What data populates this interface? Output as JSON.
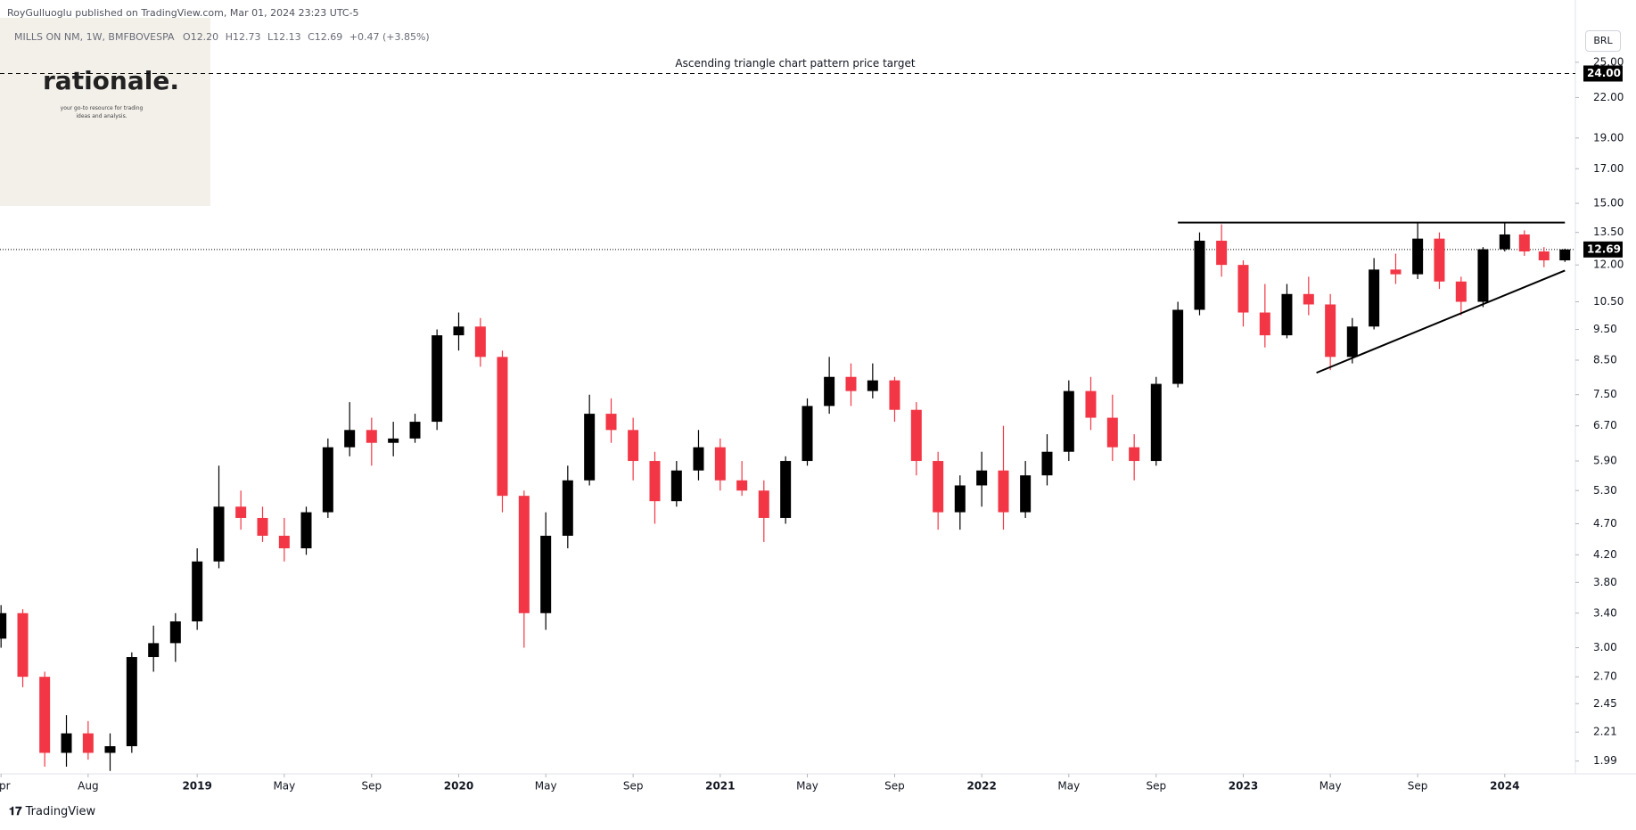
{
  "byline": "RoyGulluoglu published on TradingView.com, Mar 01, 2024 23:23 UTC-5",
  "symbol": "MILLS ON NM, 1W, BMFBOVESPA",
  "ohlc": [
    "O12.20",
    "H12.73",
    "L12.13",
    "C12.69",
    "+0.47 (+3.85%)"
  ],
  "logo": {
    "title": "rationale.",
    "tagline": [
      "your go-to resource for trading",
      "ideas and analysis."
    ]
  },
  "currency": "BRL",
  "footer": "TradingView",
  "chart_data": {
    "type": "candlestick",
    "log_scale": true,
    "up_color": "#000000",
    "down_color": "#f23645",
    "xlim": [
      2018.246,
      2024.27
    ],
    "ylim": [
      1.9,
      28.8
    ],
    "xticks": [
      {
        "value": 2018.25,
        "label": "Apr"
      },
      {
        "value": 2018.583,
        "label": "Aug"
      },
      {
        "value": 2019,
        "label": "2019"
      },
      {
        "value": 2019.333,
        "label": "May"
      },
      {
        "value": 2019.667,
        "label": "Sep"
      },
      {
        "value": 2020,
        "label": "2020"
      },
      {
        "value": 2020.333,
        "label": "May"
      },
      {
        "value": 2020.667,
        "label": "Sep"
      },
      {
        "value": 2021,
        "label": "2021"
      },
      {
        "value": 2021.333,
        "label": "May"
      },
      {
        "value": 2021.667,
        "label": "Sep"
      },
      {
        "value": 2022,
        "label": "2022"
      },
      {
        "value": 2022.333,
        "label": "May"
      },
      {
        "value": 2022.667,
        "label": "Sep"
      },
      {
        "value": 2023,
        "label": "2023"
      },
      {
        "value": 2023.333,
        "label": "May"
      },
      {
        "value": 2023.667,
        "label": "Sep"
      },
      {
        "value": 2024,
        "label": "2024"
      }
    ],
    "yticks": [
      {
        "value": 25,
        "label": "25.00"
      },
      {
        "value": 22,
        "label": "22.00"
      },
      {
        "value": 19,
        "label": "19.00"
      },
      {
        "value": 17,
        "label": "17.00"
      },
      {
        "value": 15,
        "label": "15.00"
      },
      {
        "value": 13.5,
        "label": "13.50"
      },
      {
        "value": 12,
        "label": "12.00"
      },
      {
        "value": 10.5,
        "label": "10.50"
      },
      {
        "value": 9.5,
        "label": "9.50"
      },
      {
        "value": 8.5,
        "label": "8.50"
      },
      {
        "value": 7.5,
        "label": "7.50"
      },
      {
        "value": 6.7,
        "label": "6.70"
      },
      {
        "value": 5.9,
        "label": "5.90"
      },
      {
        "value": 5.3,
        "label": "5.30"
      },
      {
        "value": 4.7,
        "label": "4.70"
      },
      {
        "value": 4.2,
        "label": "4.20"
      },
      {
        "value": 3.8,
        "label": "3.80"
      },
      {
        "value": 3.4,
        "label": "3.40"
      },
      {
        "value": 3,
        "label": "3.00"
      },
      {
        "value": 2.7,
        "label": "2.70"
      },
      {
        "value": 2.45,
        "label": "2.45"
      },
      {
        "value": 2.21,
        "label": "2.21"
      },
      {
        "value": 1.99,
        "label": "1.99"
      }
    ],
    "target": {
      "value": 24,
      "label": "24.00",
      "text": "Ascending triangle chart pattern price target"
    },
    "last_price": {
      "value": 12.69,
      "label": "12.69"
    },
    "trendlines": [
      {
        "x": [
          2022.75,
          2024.23
        ],
        "values": [
          13.99,
          13.99
        ]
      },
      {
        "x": [
          2023.28,
          2024.23
        ],
        "values": [
          8.12,
          11.76
        ]
      }
    ],
    "x": [
      2018.25,
      2018.333,
      2018.417,
      2018.5,
      2018.583,
      2018.667,
      2018.75,
      2018.833,
      2018.917,
      2019,
      2019.083,
      2019.167,
      2019.25,
      2019.333,
      2019.417,
      2019.5,
      2019.583,
      2019.667,
      2019.75,
      2019.833,
      2019.917,
      2020,
      2020.083,
      2020.167,
      2020.25,
      2020.333,
      2020.417,
      2020.5,
      2020.583,
      2020.667,
      2020.75,
      2020.833,
      2020.917,
      2021,
      2021.083,
      2021.167,
      2021.25,
      2021.333,
      2021.417,
      2021.5,
      2021.583,
      2021.667,
      2021.75,
      2021.833,
      2021.917,
      2022,
      2022.083,
      2022.167,
      2022.25,
      2022.333,
      2022.417,
      2022.5,
      2022.583,
      2022.667,
      2022.75,
      2022.833,
      2022.917,
      2023,
      2023.083,
      2023.167,
      2023.25,
      2023.333,
      2023.417,
      2023.5,
      2023.583,
      2023.667,
      2023.75,
      2023.833,
      2023.917,
      2024,
      2024.075,
      2024.15,
      2024.23
    ],
    "open": [
      3.1,
      3.4,
      2.7,
      2.05,
      2.2,
      2.05,
      2.1,
      2.9,
      3.05,
      3.3,
      4.1,
      5.0,
      4.8,
      4.5,
      4.3,
      4.9,
      6.2,
      6.6,
      6.3,
      6.4,
      6.8,
      9.3,
      9.6,
      8.6,
      5.2,
      3.4,
      4.5,
      5.5,
      7.0,
      6.6,
      5.9,
      5.1,
      5.7,
      6.2,
      5.5,
      5.3,
      4.8,
      5.9,
      7.2,
      8.0,
      7.6,
      7.9,
      7.1,
      5.9,
      4.9,
      5.4,
      5.7,
      4.9,
      5.6,
      6.1,
      7.6,
      6.9,
      6.2,
      5.9,
      7.8,
      10.2,
      13.1,
      12.0,
      10.1,
      9.3,
      10.8,
      10.4,
      8.6,
      9.6,
      11.8,
      11.6,
      13.2,
      11.3,
      10.5,
      12.7,
      13.4,
      12.6,
      12.2
    ],
    "high": [
      3.5,
      3.45,
      2.75,
      2.35,
      2.3,
      2.2,
      2.95,
      3.25,
      3.4,
      4.3,
      5.8,
      5.3,
      5.0,
      4.8,
      5.0,
      6.4,
      7.3,
      6.9,
      6.8,
      7.0,
      9.5,
      10.1,
      9.9,
      8.8,
      5.3,
      4.9,
      5.8,
      7.5,
      7.4,
      6.9,
      6.1,
      5.9,
      6.6,
      6.4,
      5.9,
      5.5,
      6.0,
      7.4,
      8.6,
      8.4,
      8.4,
      8.0,
      7.3,
      6.1,
      5.6,
      6.1,
      6.7,
      5.9,
      6.5,
      7.9,
      8.0,
      7.5,
      6.5,
      8.0,
      10.5,
      13.5,
      13.9,
      12.2,
      11.2,
      11.2,
      11.5,
      10.8,
      9.9,
      12.3,
      12.5,
      14.0,
      13.5,
      11.5,
      12.8,
      14.0,
      13.6,
      12.8,
      12.73
    ],
    "low": [
      3.0,
      2.6,
      1.95,
      1.95,
      2.0,
      1.92,
      2.05,
      2.75,
      2.85,
      3.2,
      4.0,
      4.6,
      4.4,
      4.1,
      4.2,
      4.8,
      6.0,
      5.8,
      6.0,
      6.3,
      6.6,
      8.8,
      8.3,
      4.9,
      3.0,
      3.2,
      4.3,
      5.4,
      6.3,
      5.5,
      4.7,
      5.0,
      5.5,
      5.3,
      5.2,
      4.4,
      4.7,
      5.8,
      7.0,
      7.2,
      7.4,
      6.8,
      5.6,
      4.6,
      4.6,
      5.0,
      4.6,
      4.8,
      5.4,
      5.9,
      6.6,
      5.9,
      5.5,
      5.8,
      7.7,
      10.0,
      11.5,
      9.6,
      8.9,
      9.2,
      10.0,
      8.2,
      8.4,
      9.5,
      11.2,
      11.4,
      11.0,
      10.0,
      10.3,
      12.6,
      12.4,
      11.9,
      12.13
    ],
    "close": [
      3.4,
      2.7,
      2.05,
      2.2,
      2.05,
      2.1,
      2.9,
      3.05,
      3.3,
      4.1,
      5.0,
      4.8,
      4.5,
      4.3,
      4.9,
      6.2,
      6.6,
      6.3,
      6.4,
      6.8,
      9.3,
      9.6,
      8.6,
      5.2,
      3.4,
      4.5,
      5.5,
      7.0,
      6.6,
      5.9,
      5.1,
      5.7,
      6.2,
      5.5,
      5.3,
      4.8,
      5.9,
      7.2,
      8.0,
      7.6,
      7.9,
      7.1,
      5.9,
      4.9,
      5.4,
      5.7,
      4.9,
      5.6,
      6.1,
      7.6,
      6.9,
      6.2,
      5.9,
      7.8,
      10.2,
      13.1,
      12.0,
      10.1,
      9.3,
      10.8,
      10.4,
      8.6,
      9.6,
      11.8,
      11.6,
      13.2,
      11.3,
      10.5,
      12.7,
      13.4,
      12.6,
      12.2,
      12.69
    ]
  }
}
